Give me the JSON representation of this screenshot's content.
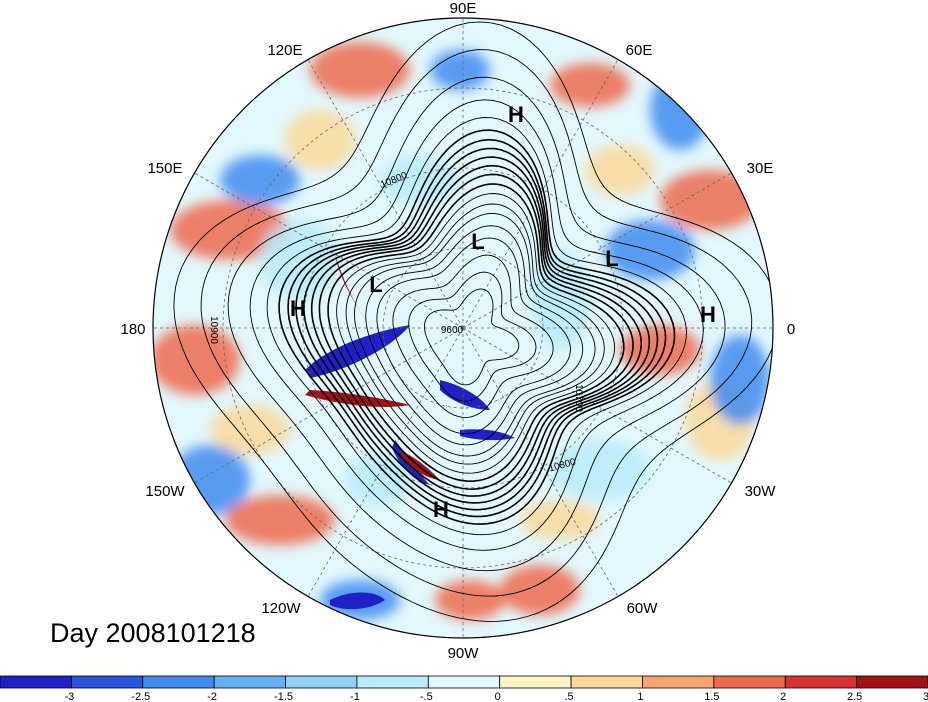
{
  "title": "Day 2008101218",
  "longitude_labels": [
    "90E",
    "60E",
    "30E",
    "0",
    "30W",
    "60W",
    "90W",
    "120W",
    "150W",
    "180",
    "150E",
    "120E"
  ],
  "pressure_systems": [
    "H",
    "H",
    "H",
    "H",
    "L",
    "L",
    "L"
  ],
  "contour_labels": [
    "10800",
    "9600",
    "10900",
    "10700",
    "10800"
  ],
  "colorbar": {
    "tick_labels": [
      "-3",
      "-2.5",
      "-2",
      "-1.5",
      "-1",
      "-.5",
      "0",
      ".5",
      "1",
      "1.5",
      "2",
      "2.5",
      "3"
    ],
    "colors": [
      "#2020c8",
      "#2a55e0",
      "#3f8cf0",
      "#63b0f5",
      "#8fd2f8",
      "#b8ecfb",
      "#e2f8fc",
      "#fdf5c5",
      "#fbd99a",
      "#f6a570",
      "#ef6a4c",
      "#dc2f2f",
      "#a50f15"
    ]
  },
  "map_colors": {
    "warm": "#ef6a4c",
    "light_warm": "#fbd99a",
    "cool": "#3f8cf0",
    "light_cool": "#b8ecfb",
    "deep_cool": "#2020c8",
    "deep_warm": "#a50f15"
  }
}
